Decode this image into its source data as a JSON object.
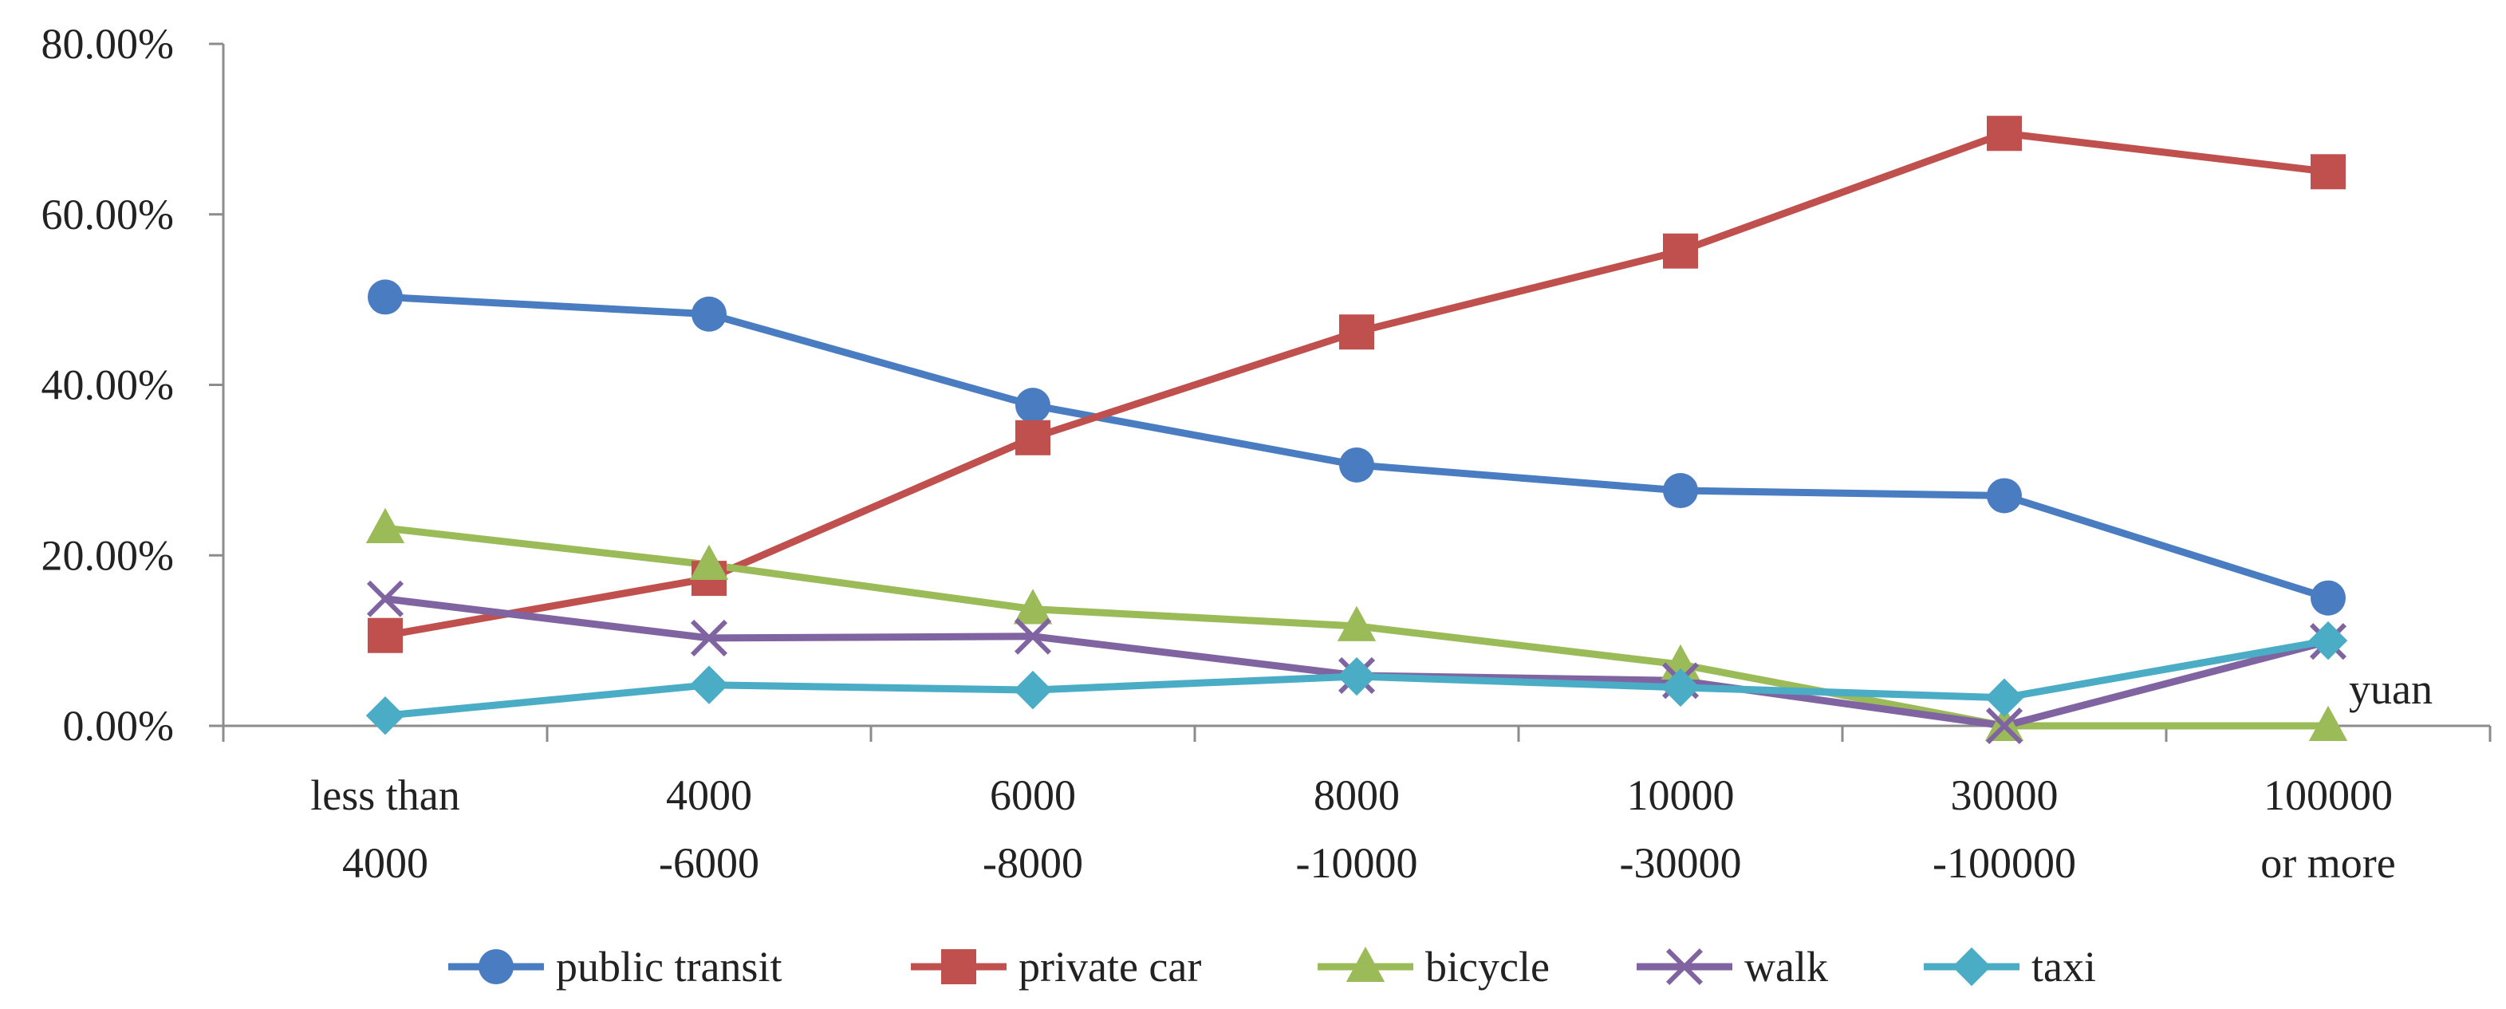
{
  "chart_data": {
    "type": "line",
    "title": "",
    "xlabel": "",
    "ylabel": "",
    "unit_label": "yuan",
    "categories": [
      [
        "less than",
        "4000"
      ],
      [
        "4000",
        "-6000"
      ],
      [
        "6000",
        "-8000"
      ],
      [
        "8000",
        "-10000"
      ],
      [
        "10000",
        "-30000"
      ],
      [
        "30000",
        "-100000"
      ],
      [
        "100000",
        "or more"
      ]
    ],
    "ylim": [
      0,
      80
    ],
    "yticks": [
      0,
      20,
      40,
      60,
      80
    ],
    "ytick_labels": [
      "0.00%",
      "20.00%",
      "40.00%",
      "60.00%",
      "80.00%"
    ],
    "grid": false,
    "legend_position": "bottom",
    "series": [
      {
        "name": "public transit",
        "color": "#4a7cc1",
        "marker": "circle",
        "values": [
          50.3,
          48.3,
          37.6,
          30.6,
          27.6,
          27.0,
          15.0
        ]
      },
      {
        "name": "private car",
        "color": "#c0504d",
        "marker": "square",
        "values": [
          10.6,
          17.3,
          33.8,
          46.2,
          55.7,
          69.5,
          65.0
        ]
      },
      {
        "name": "bicycle",
        "color": "#9bbb59",
        "marker": "triangle",
        "values": [
          23.2,
          18.9,
          13.7,
          11.7,
          7.2,
          0.0,
          0.0
        ]
      },
      {
        "name": "walk",
        "color": "#8064a2",
        "marker": "x",
        "values": [
          14.9,
          10.3,
          10.5,
          5.9,
          5.3,
          0.0,
          9.9
        ]
      },
      {
        "name": "taxi",
        "color": "#4bacc6",
        "marker": "diamond",
        "values": [
          1.2,
          4.8,
          4.2,
          5.8,
          4.5,
          3.3,
          10.0
        ]
      }
    ]
  }
}
